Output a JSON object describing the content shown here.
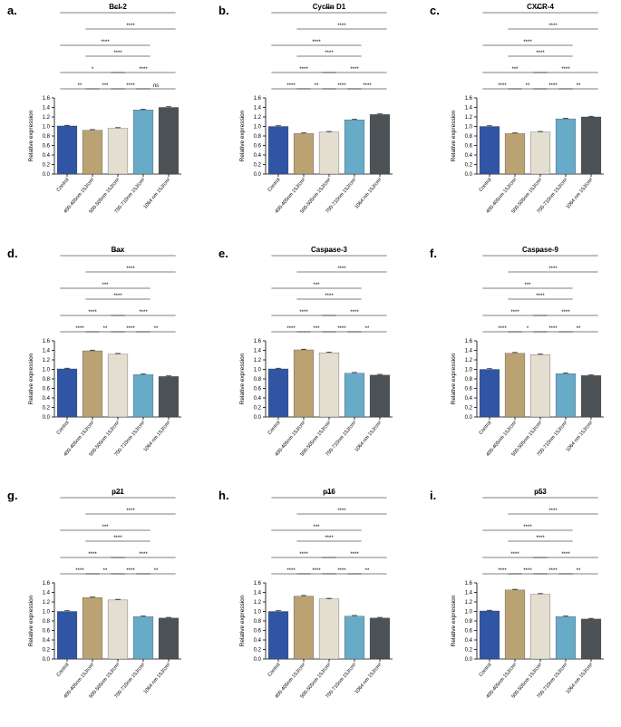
{
  "colors": {
    "series": [
      "#2f55a4",
      "#bba272",
      "#e4ded1",
      "#68abc9",
      "#4d5256"
    ]
  },
  "chart_data": [
    {
      "type": "bar",
      "letter": "a.",
      "title": "Bcl-2",
      "ylabel": "Relative expression",
      "ylim": [
        0,
        1.6
      ],
      "yticks": [
        "0.0",
        "0.2",
        "0.4",
        "0.6",
        "0.8",
        "1.0",
        "1.2",
        "1.4",
        "1.6"
      ],
      "categories": [
        "Control",
        "400-405nm 15J/cm²",
        "500-505nm 15J/cm²",
        "700-710nm 15J/cm²",
        "1064 nm 15J/cm²"
      ],
      "values": [
        1.01,
        0.92,
        0.96,
        1.35,
        1.4
      ],
      "significance": [
        {
          "a": 0,
          "b": 1,
          "label": "**"
        },
        {
          "a": 1,
          "b": 2,
          "label": "***"
        },
        {
          "a": 2,
          "b": 3,
          "label": "****"
        },
        {
          "a": 3,
          "b": 4,
          "label": "ns"
        },
        {
          "a": 0,
          "b": 2,
          "label": "*"
        },
        {
          "a": 2,
          "b": 4,
          "label": "****"
        },
        {
          "a": 1,
          "b": 3,
          "label": "****"
        },
        {
          "a": 0,
          "b": 3,
          "label": "****"
        },
        {
          "a": 1,
          "b": 4,
          "label": "****"
        },
        {
          "a": 0,
          "b": 4,
          "label": "****"
        }
      ]
    },
    {
      "type": "bar",
      "letter": "b.",
      "title": "Cyclin D1",
      "ylabel": "Relative expression",
      "ylim": [
        0,
        1.6
      ],
      "yticks": [
        "0.0",
        "0.2",
        "0.4",
        "0.6",
        "0.8",
        "1.0",
        "1.2",
        "1.4",
        "1.6"
      ],
      "categories": [
        "Control",
        "400-405nm 15J/cm²",
        "500-505nm 15J/cm²",
        "700-710nm 15J/cm²",
        "1064 nm 15J/cm²"
      ],
      "values": [
        1.0,
        0.85,
        0.88,
        1.14,
        1.25
      ],
      "significance": [
        {
          "a": 0,
          "b": 1,
          "label": "****"
        },
        {
          "a": 1,
          "b": 2,
          "label": "**"
        },
        {
          "a": 2,
          "b": 3,
          "label": "****"
        },
        {
          "a": 3,
          "b": 4,
          "label": "****"
        },
        {
          "a": 0,
          "b": 2,
          "label": "****"
        },
        {
          "a": 2,
          "b": 4,
          "label": "****"
        },
        {
          "a": 1,
          "b": 3,
          "label": "****"
        },
        {
          "a": 0,
          "b": 3,
          "label": "****"
        },
        {
          "a": 1,
          "b": 4,
          "label": "****"
        },
        {
          "a": 0,
          "b": 4,
          "label": "****"
        }
      ]
    },
    {
      "type": "bar",
      "letter": "c.",
      "title": "CXCR-4",
      "ylabel": "Relative expression",
      "ylim": [
        0,
        1.6
      ],
      "yticks": [
        "0.0",
        "0.2",
        "0.4",
        "0.6",
        "0.8",
        "1.0",
        "1.2",
        "1.4",
        "1.6"
      ],
      "categories": [
        "Control",
        "400-405nm 15J/cm²",
        "500-505nm 15J/cm²",
        "700-710nm 15J/cm²",
        "1064 nm 15J/cm²"
      ],
      "values": [
        1.0,
        0.85,
        0.88,
        1.16,
        1.2
      ],
      "significance": [
        {
          "a": 0,
          "b": 1,
          "label": "****"
        },
        {
          "a": 1,
          "b": 2,
          "label": "**"
        },
        {
          "a": 2,
          "b": 3,
          "label": "****"
        },
        {
          "a": 3,
          "b": 4,
          "label": "**"
        },
        {
          "a": 0,
          "b": 2,
          "label": "***"
        },
        {
          "a": 2,
          "b": 4,
          "label": "****"
        },
        {
          "a": 1,
          "b": 3,
          "label": "****"
        },
        {
          "a": 0,
          "b": 3,
          "label": "****"
        },
        {
          "a": 1,
          "b": 4,
          "label": "****"
        },
        {
          "a": 0,
          "b": 4,
          "label": "****"
        }
      ]
    },
    {
      "type": "bar",
      "letter": "d.",
      "title": "Bax",
      "ylabel": "Relative expression",
      "ylim": [
        0,
        1.6
      ],
      "yticks": [
        "0.0",
        "0.2",
        "0.4",
        "0.6",
        "0.8",
        "1.0",
        "1.2",
        "1.4",
        "1.6"
      ],
      "categories": [
        "Control",
        "400-405nm 15J/cm²",
        "500-505nm 15J/cm²",
        "700-710nm 15J/cm²",
        "1064 nm 15J/cm²"
      ],
      "values": [
        1.01,
        1.39,
        1.32,
        0.89,
        0.85
      ],
      "significance": [
        {
          "a": 0,
          "b": 1,
          "label": "****"
        },
        {
          "a": 1,
          "b": 2,
          "label": "**"
        },
        {
          "a": 2,
          "b": 3,
          "label": "****"
        },
        {
          "a": 3,
          "b": 4,
          "label": "**"
        },
        {
          "a": 0,
          "b": 2,
          "label": "****"
        },
        {
          "a": 2,
          "b": 4,
          "label": "****"
        },
        {
          "a": 1,
          "b": 3,
          "label": "****"
        },
        {
          "a": 0,
          "b": 3,
          "label": "***"
        },
        {
          "a": 1,
          "b": 4,
          "label": "****"
        },
        {
          "a": 0,
          "b": 4,
          "label": "****"
        }
      ]
    },
    {
      "type": "bar",
      "letter": "e.",
      "title": "Caspase-3",
      "ylabel": "Relative expression",
      "ylim": [
        0,
        1.6
      ],
      "yticks": [
        "0.0",
        "0.2",
        "0.4",
        "0.6",
        "0.8",
        "1.0",
        "1.2",
        "1.4",
        "1.6"
      ],
      "categories": [
        "Control",
        "400-405nm 15J/cm²",
        "500-505nm 15J/cm²",
        "700-710nm 15J/cm²",
        "1064 nm 15J/cm²"
      ],
      "values": [
        1.01,
        1.41,
        1.35,
        0.92,
        0.88
      ],
      "significance": [
        {
          "a": 0,
          "b": 1,
          "label": "****"
        },
        {
          "a": 1,
          "b": 2,
          "label": "***"
        },
        {
          "a": 2,
          "b": 3,
          "label": "****"
        },
        {
          "a": 3,
          "b": 4,
          "label": "**"
        },
        {
          "a": 0,
          "b": 2,
          "label": "****"
        },
        {
          "a": 2,
          "b": 4,
          "label": "****"
        },
        {
          "a": 1,
          "b": 3,
          "label": "****"
        },
        {
          "a": 0,
          "b": 3,
          "label": "***"
        },
        {
          "a": 1,
          "b": 4,
          "label": "****"
        },
        {
          "a": 0,
          "b": 4,
          "label": "****"
        }
      ]
    },
    {
      "type": "bar",
      "letter": "f.",
      "title": "Caspase-9",
      "ylabel": "Relative expression",
      "ylim": [
        0,
        1.6
      ],
      "yticks": [
        "0.0",
        "0.2",
        "0.4",
        "0.6",
        "0.8",
        "1.0",
        "1.2",
        "1.4",
        "1.6"
      ],
      "categories": [
        "Control",
        "400-405nm 15J/cm²",
        "500-505nm 15J/cm²",
        "700-710nm 15J/cm²",
        "1064 nm 15J/cm²"
      ],
      "values": [
        1.0,
        1.34,
        1.31,
        0.91,
        0.87
      ],
      "significance": [
        {
          "a": 0,
          "b": 1,
          "label": "****"
        },
        {
          "a": 1,
          "b": 2,
          "label": "*"
        },
        {
          "a": 2,
          "b": 3,
          "label": "****"
        },
        {
          "a": 3,
          "b": 4,
          "label": "**"
        },
        {
          "a": 0,
          "b": 2,
          "label": "****"
        },
        {
          "a": 2,
          "b": 4,
          "label": "****"
        },
        {
          "a": 1,
          "b": 3,
          "label": "****"
        },
        {
          "a": 0,
          "b": 3,
          "label": "***"
        },
        {
          "a": 1,
          "b": 4,
          "label": "****"
        },
        {
          "a": 0,
          "b": 4,
          "label": "***"
        }
      ]
    },
    {
      "type": "bar",
      "letter": "g.",
      "title": "p21",
      "ylabel": "Relative expression",
      "ylim": [
        0,
        1.6
      ],
      "yticks": [
        "0.0",
        "0.2",
        "0.4",
        "0.6",
        "0.8",
        "1.0",
        "1.2",
        "1.4",
        "1.6"
      ],
      "categories": [
        "Control",
        "400-405nm 15J/cm²",
        "500-505nm 15J/cm²",
        "700-710nm 15J/cm²",
        "1064 nm 15J/cm²"
      ],
      "values": [
        1.0,
        1.29,
        1.24,
        0.89,
        0.86
      ],
      "significance": [
        {
          "a": 0,
          "b": 1,
          "label": "****"
        },
        {
          "a": 1,
          "b": 2,
          "label": "**"
        },
        {
          "a": 2,
          "b": 3,
          "label": "****"
        },
        {
          "a": 3,
          "b": 4,
          "label": "**"
        },
        {
          "a": 0,
          "b": 2,
          "label": "****"
        },
        {
          "a": 2,
          "b": 4,
          "label": "****"
        },
        {
          "a": 1,
          "b": 3,
          "label": "****"
        },
        {
          "a": 0,
          "b": 3,
          "label": "***"
        },
        {
          "a": 1,
          "b": 4,
          "label": "****"
        },
        {
          "a": 0,
          "b": 4,
          "label": "****"
        }
      ]
    },
    {
      "type": "bar",
      "letter": "h.",
      "title": "p16",
      "ylabel": "Relative expression",
      "ylim": [
        0,
        1.6
      ],
      "yticks": [
        "0.0",
        "0.2",
        "0.4",
        "0.6",
        "0.8",
        "1.0",
        "1.2",
        "1.4",
        "1.6"
      ],
      "categories": [
        "Control",
        "400-405nm 15J/cm²",
        "500-505nm 15J/cm²",
        "700-710nm 15J/cm²",
        "1064 nm 15J/cm²"
      ],
      "values": [
        1.0,
        1.32,
        1.26,
        0.9,
        0.86
      ],
      "significance": [
        {
          "a": 0,
          "b": 1,
          "label": "****"
        },
        {
          "a": 1,
          "b": 2,
          "label": "****"
        },
        {
          "a": 2,
          "b": 3,
          "label": "****"
        },
        {
          "a": 3,
          "b": 4,
          "label": "**"
        },
        {
          "a": 0,
          "b": 2,
          "label": "****"
        },
        {
          "a": 2,
          "b": 4,
          "label": "****"
        },
        {
          "a": 1,
          "b": 3,
          "label": "****"
        },
        {
          "a": 0,
          "b": 3,
          "label": "***"
        },
        {
          "a": 1,
          "b": 4,
          "label": "****"
        },
        {
          "a": 0,
          "b": 4,
          "label": "****"
        }
      ]
    },
    {
      "type": "bar",
      "letter": "i.",
      "title": "p53",
      "ylabel": "Relative expression",
      "ylim": [
        0,
        1.6
      ],
      "yticks": [
        "0.0",
        "0.2",
        "0.4",
        "0.6",
        "0.8",
        "1.0",
        "1.2",
        "1.4",
        "1.6"
      ],
      "categories": [
        "Control",
        "400-405nm 15J/cm²",
        "500-505nm 15J/cm²",
        "700-710nm 15J/cm²",
        "1064 nm 15J/cm²"
      ],
      "values": [
        1.01,
        1.45,
        1.36,
        0.89,
        0.84
      ],
      "significance": [
        {
          "a": 0,
          "b": 1,
          "label": "****"
        },
        {
          "a": 1,
          "b": 2,
          "label": "****"
        },
        {
          "a": 2,
          "b": 3,
          "label": "****"
        },
        {
          "a": 3,
          "b": 4,
          "label": "**"
        },
        {
          "a": 0,
          "b": 2,
          "label": "****"
        },
        {
          "a": 2,
          "b": 4,
          "label": "****"
        },
        {
          "a": 1,
          "b": 3,
          "label": "****"
        },
        {
          "a": 0,
          "b": 3,
          "label": "****"
        },
        {
          "a": 1,
          "b": 4,
          "label": "****"
        },
        {
          "a": 0,
          "b": 4,
          "label": "****"
        }
      ]
    }
  ]
}
